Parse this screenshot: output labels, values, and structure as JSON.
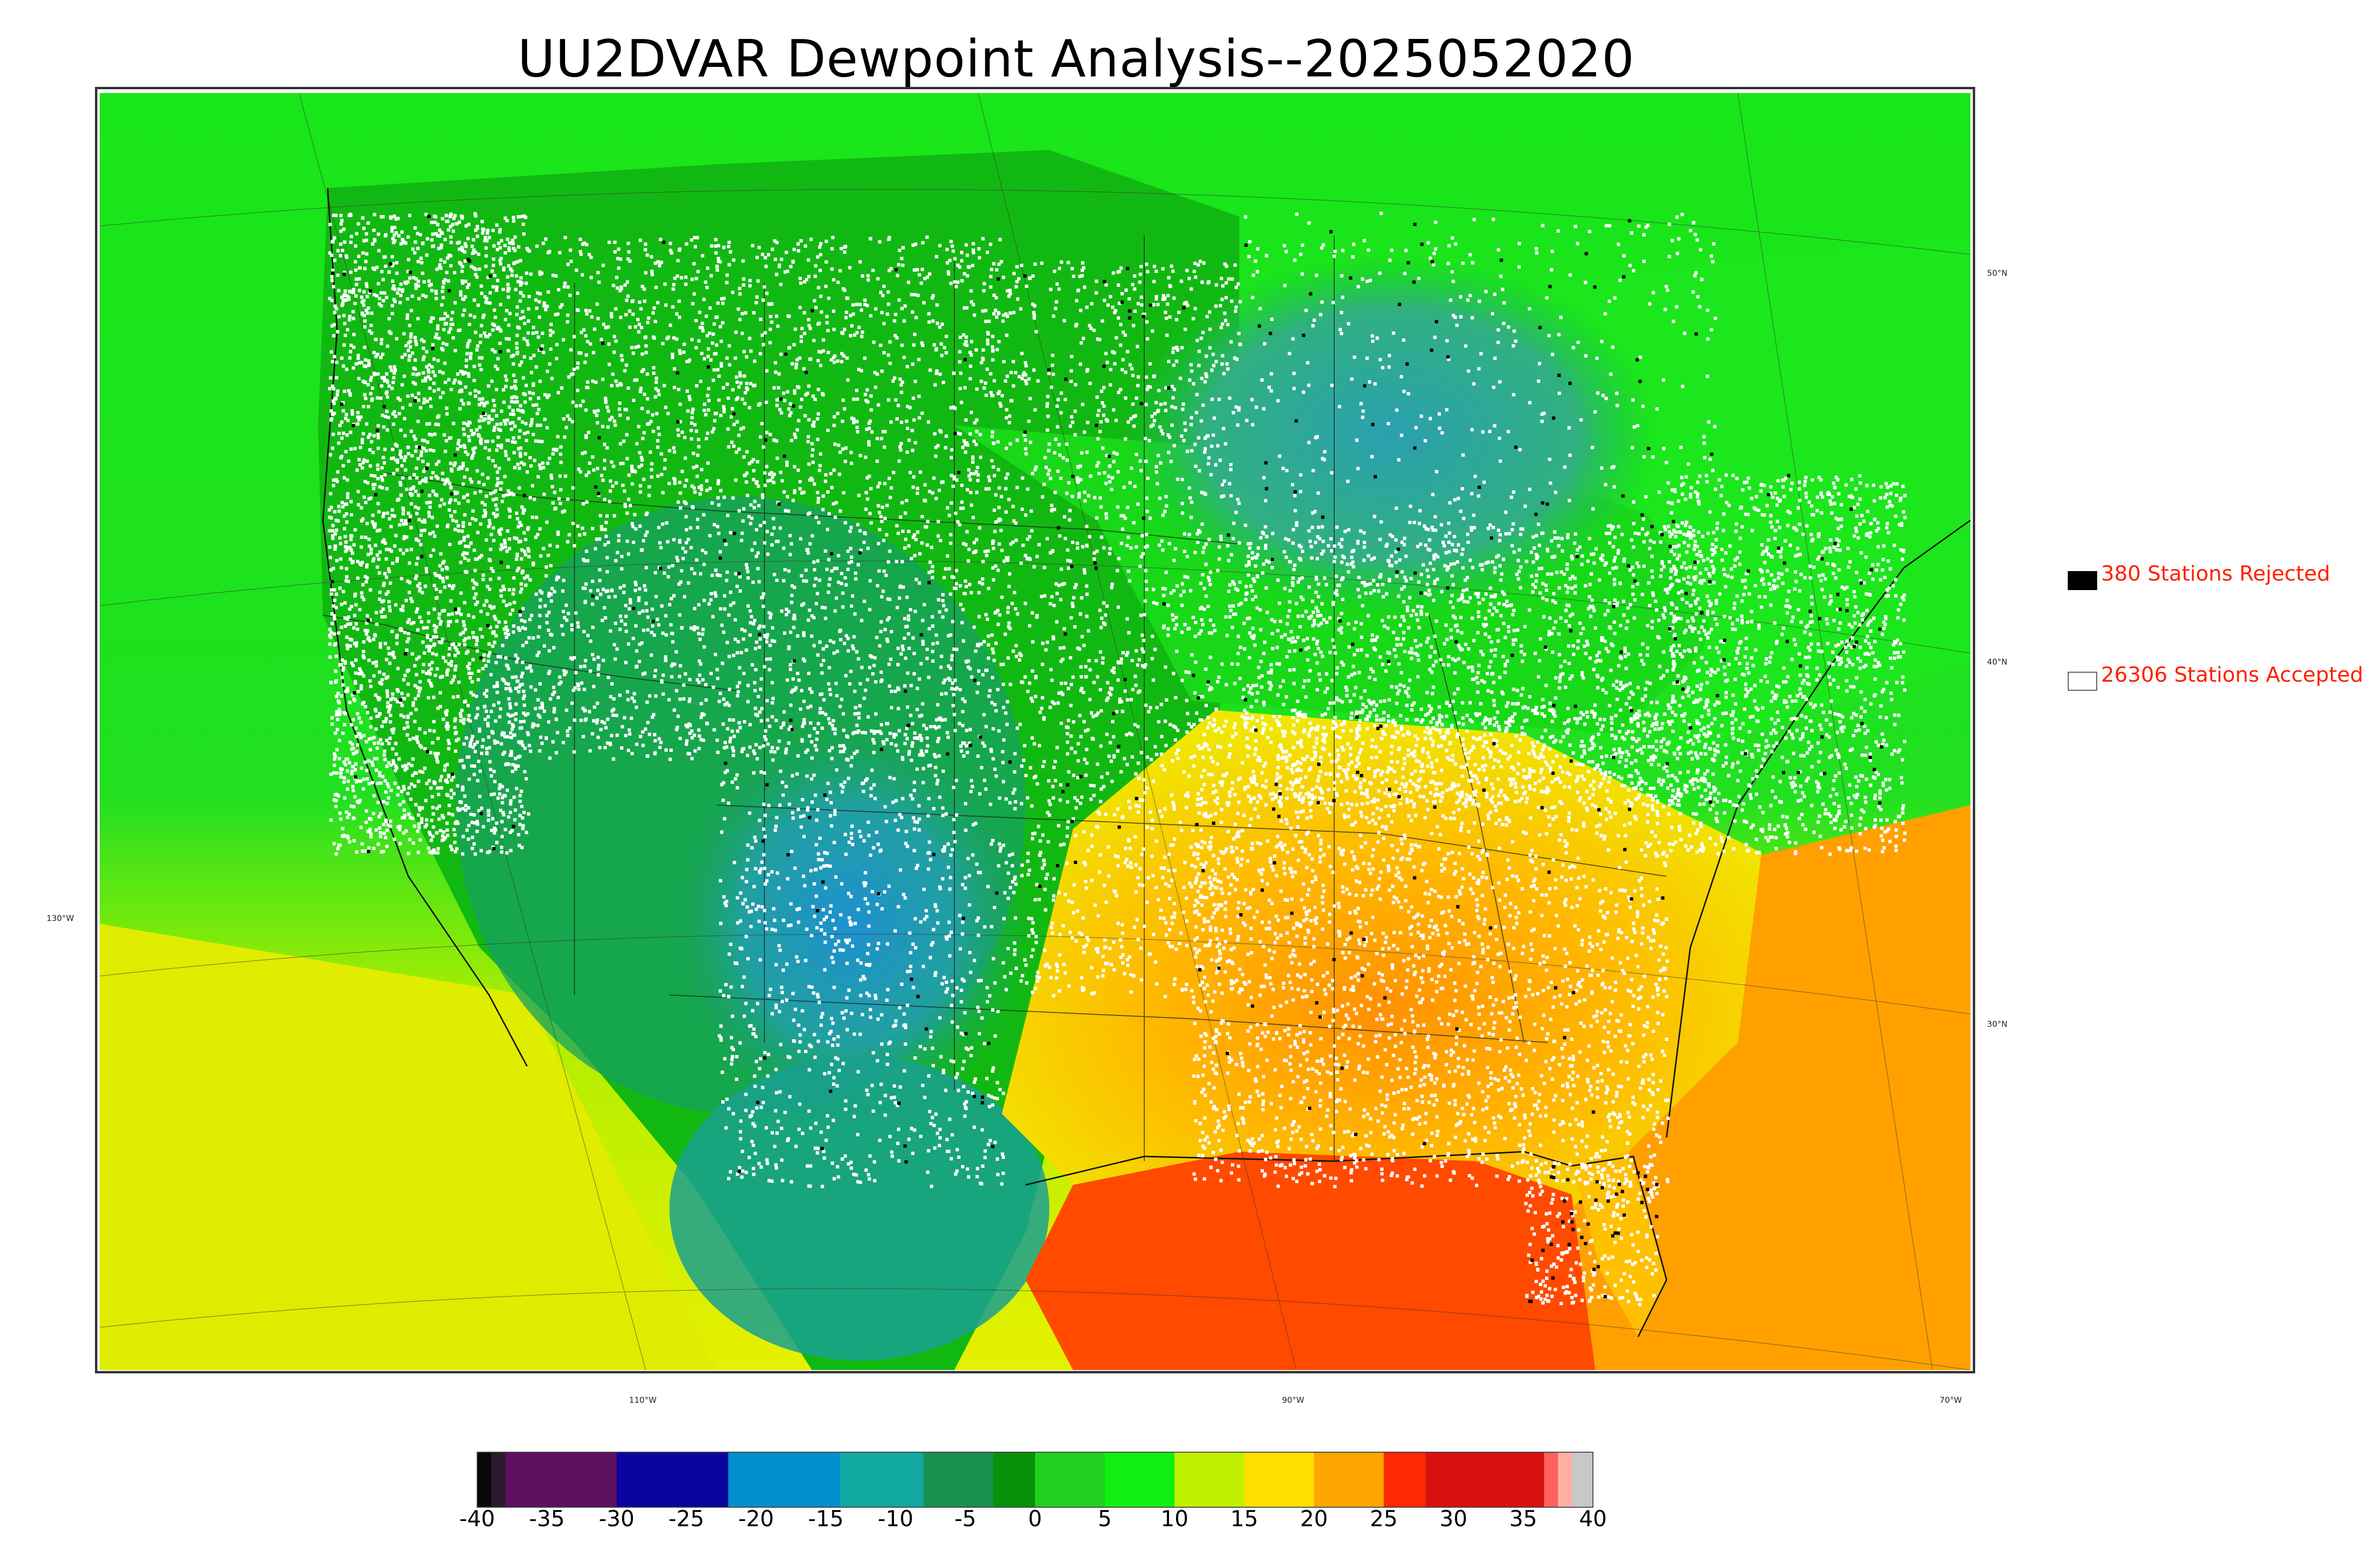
{
  "title": "UU2DVAR Dewpoint Analysis--2025052020",
  "map": {
    "lat_labels": [
      "50°N",
      "40°N",
      "30°N",
      "130°W"
    ],
    "lon_labels": [
      "110°W",
      "90°W",
      "70°W"
    ],
    "colors": {
      "ocean_north": "#19e619",
      "ocean_south": "#c8f000",
      "gulf": "#ff4a00",
      "atlantic_south": "#ffa000",
      "pacific_south": "#e6f000",
      "west_land": "#12b812",
      "mountain_dry": "#18a060",
      "rockies_dry": "#1ea0c0",
      "southeast": "#ffc000",
      "southeast_deep": "#ff8c00",
      "hudson": "#2aa8a0",
      "station_accepted": "#ffffff",
      "station_rejected": "#000000"
    }
  },
  "legend": {
    "rejected_label": "380 Stations Rejected",
    "accepted_label": "26306 Stations Accepted",
    "rejected_count": 380,
    "accepted_count": 26306
  },
  "colorbar": {
    "ticks": [
      "-40",
      "-35",
      "-30",
      "-25",
      "-20",
      "-15",
      "-10",
      "-5",
      "0",
      "5",
      "10",
      "15",
      "20",
      "25",
      "30",
      "35",
      "40"
    ],
    "range": [
      -40,
      40
    ],
    "stops": [
      {
        "from": -40,
        "to": -39,
        "color": "#080808"
      },
      {
        "from": -39,
        "to": -38,
        "color": "#2a1a2a"
      },
      {
        "from": -38,
        "to": -34,
        "color": "#5c1060"
      },
      {
        "from": -34,
        "to": -30,
        "color": "#5c1060"
      },
      {
        "from": -30,
        "to": -22,
        "color": "#0a05a0"
      },
      {
        "from": -22,
        "to": -14,
        "color": "#0090d0"
      },
      {
        "from": -14,
        "to": -8,
        "color": "#10a8a0"
      },
      {
        "from": -8,
        "to": -3,
        "color": "#189050"
      },
      {
        "from": -3,
        "to": 0,
        "color": "#089008"
      },
      {
        "from": 0,
        "to": 5,
        "color": "#20d020"
      },
      {
        "from": 5,
        "to": 10,
        "color": "#10f010"
      },
      {
        "from": 10,
        "to": 15,
        "color": "#c0f000"
      },
      {
        "from": 15,
        "to": 20,
        "color": "#ffe000"
      },
      {
        "from": 20,
        "to": 25,
        "color": "#ffa500"
      },
      {
        "from": 25,
        "to": 28,
        "color": "#ff2800"
      },
      {
        "from": 28,
        "to": 36.5,
        "color": "#d81010"
      },
      {
        "from": 36.5,
        "to": 37.5,
        "color": "#ff6060"
      },
      {
        "from": 37.5,
        "to": 38.5,
        "color": "#ffb0a0"
      },
      {
        "from": 38.5,
        "to": 40,
        "color": "#c8c8c8"
      }
    ]
  }
}
